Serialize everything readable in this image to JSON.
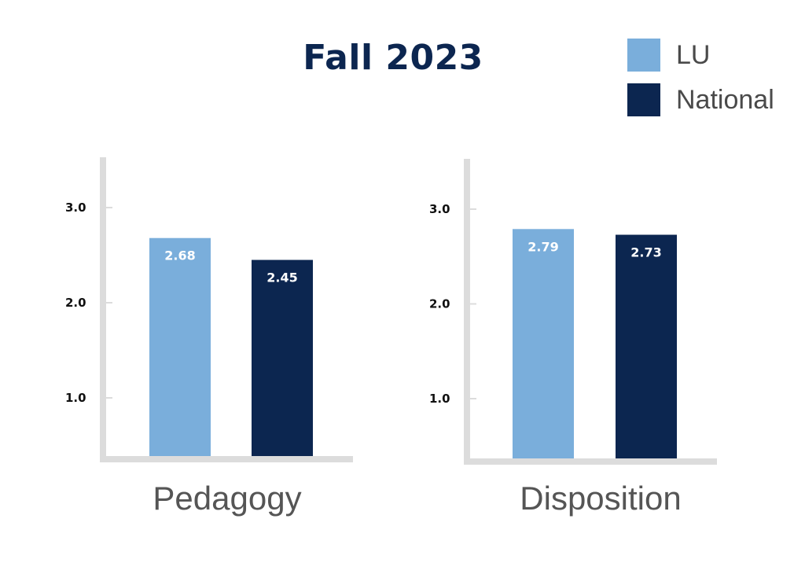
{
  "colors": {
    "lu": "#7aaedb",
    "national": "#0c2650",
    "axis": "#dcdcdc"
  },
  "chart_data": {
    "type": "bar",
    "title": "Fall 2023",
    "legend": {
      "placement": "top-right",
      "entries": [
        "LU",
        "National"
      ]
    },
    "series": [
      {
        "name": "LU"
      },
      {
        "name": "National"
      }
    ],
    "panels": [
      {
        "category": "Pedagogy",
        "values": [
          2.68,
          2.45
        ],
        "value_labels": [
          "2.68",
          "2.45"
        ],
        "yticks": [
          "1.0",
          "2.0",
          "3.0"
        ]
      },
      {
        "category": "Disposition",
        "values": [
          2.79,
          2.73
        ],
        "value_labels": [
          "2.79",
          "2.73"
        ],
        "yticks": [
          "1.0",
          "2.0",
          "3.0"
        ]
      }
    ]
  }
}
